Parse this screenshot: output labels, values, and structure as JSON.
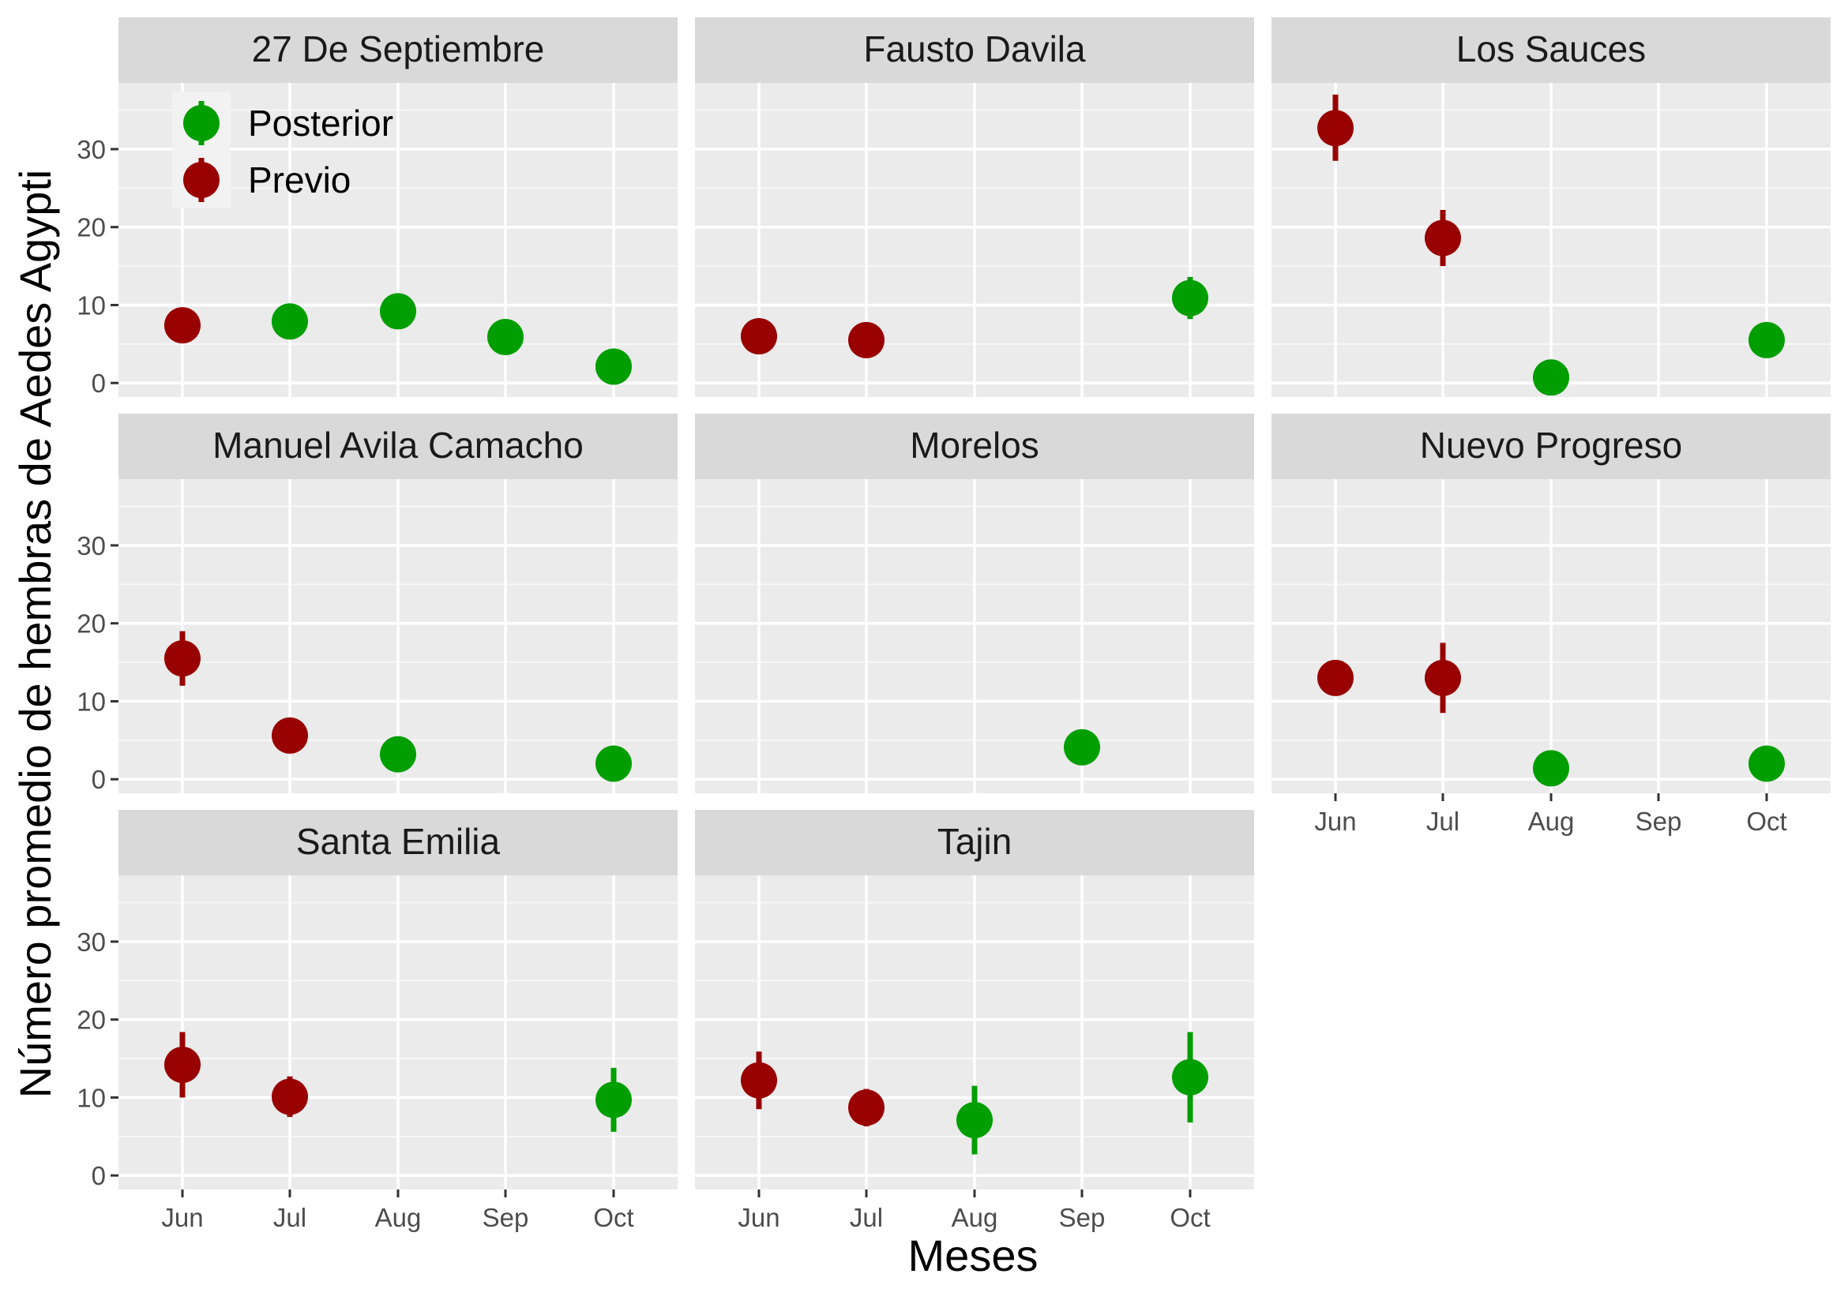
{
  "chart_data": {
    "type": "scatter",
    "xlabel": "Meses",
    "ylabel": "Número promedio de hembras de Aedes Agypti",
    "months": [
      "Jun",
      "Jul",
      "Aug",
      "Sep",
      "Oct"
    ],
    "yticks": [
      0,
      10,
      20,
      30
    ],
    "ylim": [
      -1.8,
      38.5
    ],
    "grid": true,
    "legend": {
      "position": "inside-top-left",
      "entries": [
        {
          "name": "Posterior",
          "color": "#009E00"
        },
        {
          "name": "Previo",
          "color": "#990000"
        }
      ]
    },
    "colors": {
      "Posterior": "#009E00",
      "Previo": "#990000"
    },
    "panels": [
      {
        "title": "27 De Septiembre",
        "points": [
          {
            "month": "Jun",
            "group": "Previo",
            "y": 7.4,
            "lo": 7.4,
            "hi": 7.4
          },
          {
            "month": "Jul",
            "group": "Posterior",
            "y": 7.9,
            "lo": 7.9,
            "hi": 7.9
          },
          {
            "month": "Aug",
            "group": "Posterior",
            "y": 9.2,
            "lo": 9.2,
            "hi": 9.2
          },
          {
            "month": "Sep",
            "group": "Posterior",
            "y": 5.9,
            "lo": 5.9,
            "hi": 5.9
          },
          {
            "month": "Oct",
            "group": "Posterior",
            "y": 2.1,
            "lo": 2.1,
            "hi": 2.1
          }
        ]
      },
      {
        "title": "Fausto Davila",
        "points": [
          {
            "month": "Jun",
            "group": "Previo",
            "y": 6.0,
            "lo": 6.0,
            "hi": 6.0
          },
          {
            "month": "Jul",
            "group": "Previo",
            "y": 5.5,
            "lo": 5.5,
            "hi": 5.5
          },
          {
            "month": "Oct",
            "group": "Posterior",
            "y": 10.9,
            "lo": 8.2,
            "hi": 13.6
          }
        ]
      },
      {
        "title": "Los Sauces",
        "points": [
          {
            "month": "Jun",
            "group": "Previo",
            "y": 32.7,
            "lo": 28.5,
            "hi": 37.0
          },
          {
            "month": "Jul",
            "group": "Previo",
            "y": 18.6,
            "lo": 15.0,
            "hi": 22.2
          },
          {
            "month": "Aug",
            "group": "Posterior",
            "y": 0.7,
            "lo": 0.7,
            "hi": 0.7
          },
          {
            "month": "Oct",
            "group": "Posterior",
            "y": 5.5,
            "lo": 5.5,
            "hi": 5.5
          }
        ]
      },
      {
        "title": "Manuel Avila Camacho",
        "points": [
          {
            "month": "Jun",
            "group": "Previo",
            "y": 15.5,
            "lo": 12.0,
            "hi": 19.0
          },
          {
            "month": "Jul",
            "group": "Previo",
            "y": 5.6,
            "lo": 5.6,
            "hi": 5.6
          },
          {
            "month": "Aug",
            "group": "Posterior",
            "y": 3.2,
            "lo": 3.2,
            "hi": 3.2
          },
          {
            "month": "Oct",
            "group": "Posterior",
            "y": 2.0,
            "lo": 2.0,
            "hi": 2.0
          }
        ]
      },
      {
        "title": "Morelos",
        "points": [
          {
            "month": "Sep",
            "group": "Posterior",
            "y": 4.1,
            "lo": 4.1,
            "hi": 4.1
          }
        ]
      },
      {
        "title": "Nuevo Progreso",
        "points": [
          {
            "month": "Jun",
            "group": "Previo",
            "y": 13.0,
            "lo": 13.0,
            "hi": 13.0
          },
          {
            "month": "Jul",
            "group": "Previo",
            "y": 13.0,
            "lo": 8.5,
            "hi": 17.5
          },
          {
            "month": "Aug",
            "group": "Posterior",
            "y": 1.4,
            "lo": 1.4,
            "hi": 1.4
          },
          {
            "month": "Oct",
            "group": "Posterior",
            "y": 2.0,
            "lo": 2.0,
            "hi": 2.0
          }
        ]
      },
      {
        "title": "Santa Emilia",
        "points": [
          {
            "month": "Jun",
            "group": "Previo",
            "y": 14.2,
            "lo": 10.0,
            "hi": 18.4
          },
          {
            "month": "Jul",
            "group": "Previo",
            "y": 10.1,
            "lo": 7.5,
            "hi": 12.7
          },
          {
            "month": "Oct",
            "group": "Posterior",
            "y": 9.7,
            "lo": 5.6,
            "hi": 13.8
          }
        ]
      },
      {
        "title": "Tajin",
        "points": [
          {
            "month": "Jun",
            "group": "Previo",
            "y": 12.2,
            "lo": 8.5,
            "hi": 15.9
          },
          {
            "month": "Jul",
            "group": "Previo",
            "y": 8.7,
            "lo": 6.3,
            "hi": 11.1
          },
          {
            "month": "Aug",
            "group": "Posterior",
            "y": 7.1,
            "lo": 2.7,
            "hi": 11.5
          },
          {
            "month": "Oct",
            "group": "Posterior",
            "y": 12.6,
            "lo": 6.8,
            "hi": 18.4
          }
        ]
      }
    ]
  }
}
